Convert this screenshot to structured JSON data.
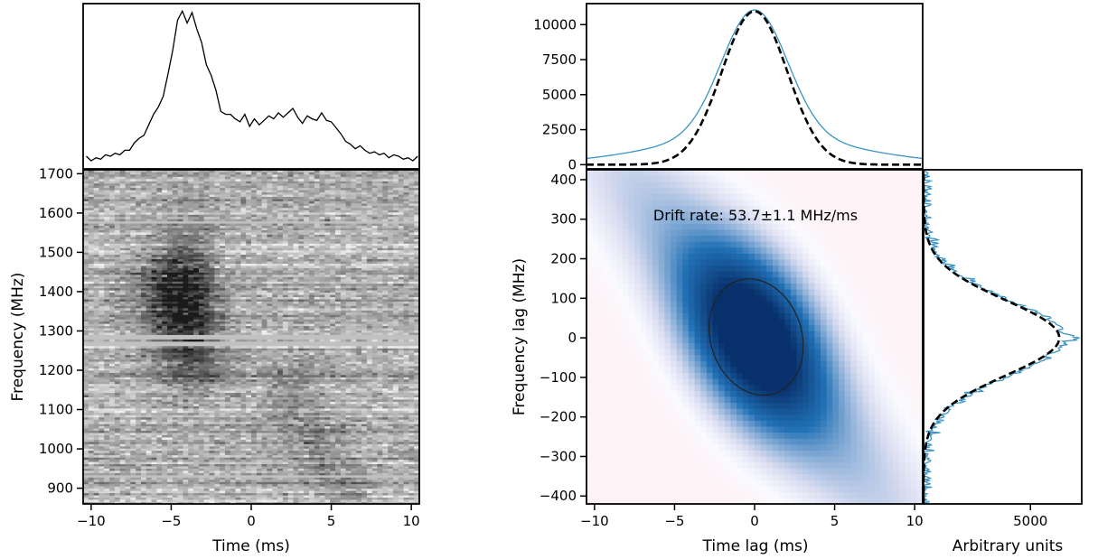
{
  "colors": {
    "profile_blue": "#3a93c3",
    "model_black": "#000000",
    "cmap_gray_dark": "#1a1a1a",
    "cmap_gray_light": "#f0f0f0",
    "cmap_blue_dark": "#08306b",
    "cmap_blue_mid": "#2171b5",
    "cmap_pink_light": "#fdf2f5",
    "cmap_lavender": "#d8dcf0"
  },
  "chart_data": [
    {
      "id": "burst_profile",
      "type": "line",
      "description_panel": "time series of frequency-averaged intensity",
      "x": [
        -10.3,
        -10.0,
        -9.7,
        -9.4,
        -9.1,
        -8.8,
        -8.5,
        -8.2,
        -7.9,
        -7.6,
        -7.3,
        -7.0,
        -6.7,
        -6.4,
        -6.1,
        -5.8,
        -5.5,
        -5.2,
        -4.9,
        -4.6,
        -4.3,
        -4.0,
        -3.7,
        -3.4,
        -3.1,
        -2.8,
        -2.5,
        -2.2,
        -1.9,
        -1.6,
        -1.3,
        -1.0,
        -0.7,
        -0.4,
        -0.1,
        0.2,
        0.5,
        0.8,
        1.1,
        1.4,
        1.7,
        2.0,
        2.3,
        2.6,
        2.9,
        3.2,
        3.5,
        3.8,
        4.1,
        4.4,
        4.7,
        5.0,
        5.3,
        5.6,
        5.9,
        6.2,
        6.5,
        6.8,
        7.1,
        7.4,
        7.7,
        8.0,
        8.3,
        8.6,
        8.9,
        9.2,
        9.5,
        9.8,
        10.1,
        10.4
      ],
      "values": [
        0.03,
        0.0,
        0.02,
        0.01,
        0.04,
        0.03,
        0.05,
        0.04,
        0.07,
        0.07,
        0.12,
        0.15,
        0.17,
        0.24,
        0.31,
        0.36,
        0.43,
        0.58,
        0.74,
        0.94,
        1.0,
        0.92,
        0.99,
        0.88,
        0.79,
        0.64,
        0.57,
        0.47,
        0.33,
        0.31,
        0.31,
        0.28,
        0.26,
        0.31,
        0.23,
        0.28,
        0.24,
        0.27,
        0.3,
        0.28,
        0.32,
        0.29,
        0.32,
        0.35,
        0.29,
        0.25,
        0.3,
        0.28,
        0.27,
        0.32,
        0.27,
        0.26,
        0.22,
        0.18,
        0.13,
        0.11,
        0.08,
        0.1,
        0.07,
        0.05,
        0.06,
        0.04,
        0.05,
        0.02,
        0.04,
        0.03,
        0.01,
        0.02,
        0.0,
        0.03
      ],
      "xlim": [
        -10.5,
        10.5
      ],
      "ylim": [
        0,
        1.05
      ]
    },
    {
      "id": "dynamic_spectrum",
      "type": "heatmap",
      "xlabel": "Time (ms)",
      "ylabel": "Frequency (MHz)",
      "xlim": [
        -10.5,
        10.5
      ],
      "ylim": [
        860,
        1710
      ],
      "xticks": [
        -10,
        -5,
        0,
        5,
        10
      ],
      "xtick_labels": [
        "−10",
        "−5",
        "0",
        "5",
        "10"
      ],
      "yticks": [
        900,
        1000,
        1100,
        1200,
        1300,
        1400,
        1500,
        1600,
        1700
      ],
      "ytick_labels": [
        "900",
        "1000",
        "1100",
        "1200",
        "1300",
        "1400",
        "1500",
        "1600",
        "1700"
      ],
      "colormap": "gray_r",
      "emission_components": [
        {
          "time_ms": -4.0,
          "time_width_ms": 1.3,
          "freq_center_mhz": 1390,
          "freq_width_mhz": 110,
          "peak": 1.0
        },
        {
          "time_ms": -5.5,
          "time_width_ms": 1.5,
          "freq_center_mhz": 1380,
          "freq_width_mhz": 90,
          "peak": 0.6
        },
        {
          "time_ms": -3.5,
          "time_width_ms": 1.4,
          "freq_center_mhz": 1230,
          "freq_width_mhz": 60,
          "peak": 0.55
        },
        {
          "time_ms": 2.5,
          "time_width_ms": 1.5,
          "freq_center_mhz": 1130,
          "freq_width_mhz": 70,
          "peak": 0.35
        },
        {
          "time_ms": 4.5,
          "time_width_ms": 1.3,
          "freq_center_mhz": 990,
          "freq_width_mhz": 60,
          "peak": 0.35
        },
        {
          "time_ms": 5.8,
          "time_width_ms": 1.0,
          "freq_center_mhz": 900,
          "freq_width_mhz": 30,
          "peak": 0.3
        }
      ],
      "masked_channels_mhz": [
        1575,
        1285,
        1268,
        932
      ]
    },
    {
      "id": "acf_time_projection",
      "type": "line",
      "xlim": [
        -10.5,
        10.5
      ],
      "ylim": [
        -300,
        11500
      ],
      "yticks": [
        0,
        2500,
        5000,
        7500,
        10000
      ],
      "ytick_labels": [
        "0",
        "2500",
        "5000",
        "7500",
        "10000"
      ],
      "series": [
        {
          "style": "data",
          "color": "#3a93c3",
          "peak": 11050,
          "core_sigma_ms": 2.05,
          "wing_amp": 2050,
          "wing_sigma_ms": 6.0
        },
        {
          "style": "model_dashed",
          "color": "#000000",
          "peak": 10950,
          "sigma_ms": 2.05
        }
      ]
    },
    {
      "id": "acf_2d",
      "type": "heatmap",
      "xlabel": "Time lag (ms)",
      "ylabel": "Frequency lag (MHz)",
      "xlim": [
        -10.5,
        10.5
      ],
      "ylim": [
        -420,
        425
      ],
      "xticks": [
        -10,
        -5,
        0,
        5,
        10
      ],
      "xtick_labels": [
        "−10",
        "−5",
        "0",
        "5",
        "10"
      ],
      "yticks": [
        -400,
        -300,
        -200,
        -100,
        0,
        100,
        200,
        300,
        400
      ],
      "ytick_labels": [
        "−400",
        "−300",
        "−200",
        "−100",
        "0",
        "100",
        "200",
        "300",
        "400"
      ],
      "annotation": "Drift rate: 53.7±1.1 MHz/ms",
      "colormap": "blue_pink_diverging",
      "contour_ellipse": {
        "center_ms": 0.1,
        "center_mhz": 2,
        "half_width_ms": 2.85,
        "half_height_mhz": 150,
        "tilt_deg": -18
      }
    },
    {
      "id": "acf_freq_projection",
      "type": "line",
      "xlabel": "Arbitrary units",
      "xlim": [
        0,
        7400
      ],
      "ylim": [
        -420,
        425
      ],
      "xticks": [
        5000
      ],
      "xtick_labels": [
        "5000"
      ],
      "series": [
        {
          "style": "data",
          "color": "#3a93c3",
          "peak": 6500,
          "sigma_mhz": 95,
          "baseline": 120
        },
        {
          "style": "model_dashed",
          "color": "#000000",
          "peak": 6350,
          "sigma_mhz": 95,
          "baseline": 0
        }
      ]
    }
  ]
}
